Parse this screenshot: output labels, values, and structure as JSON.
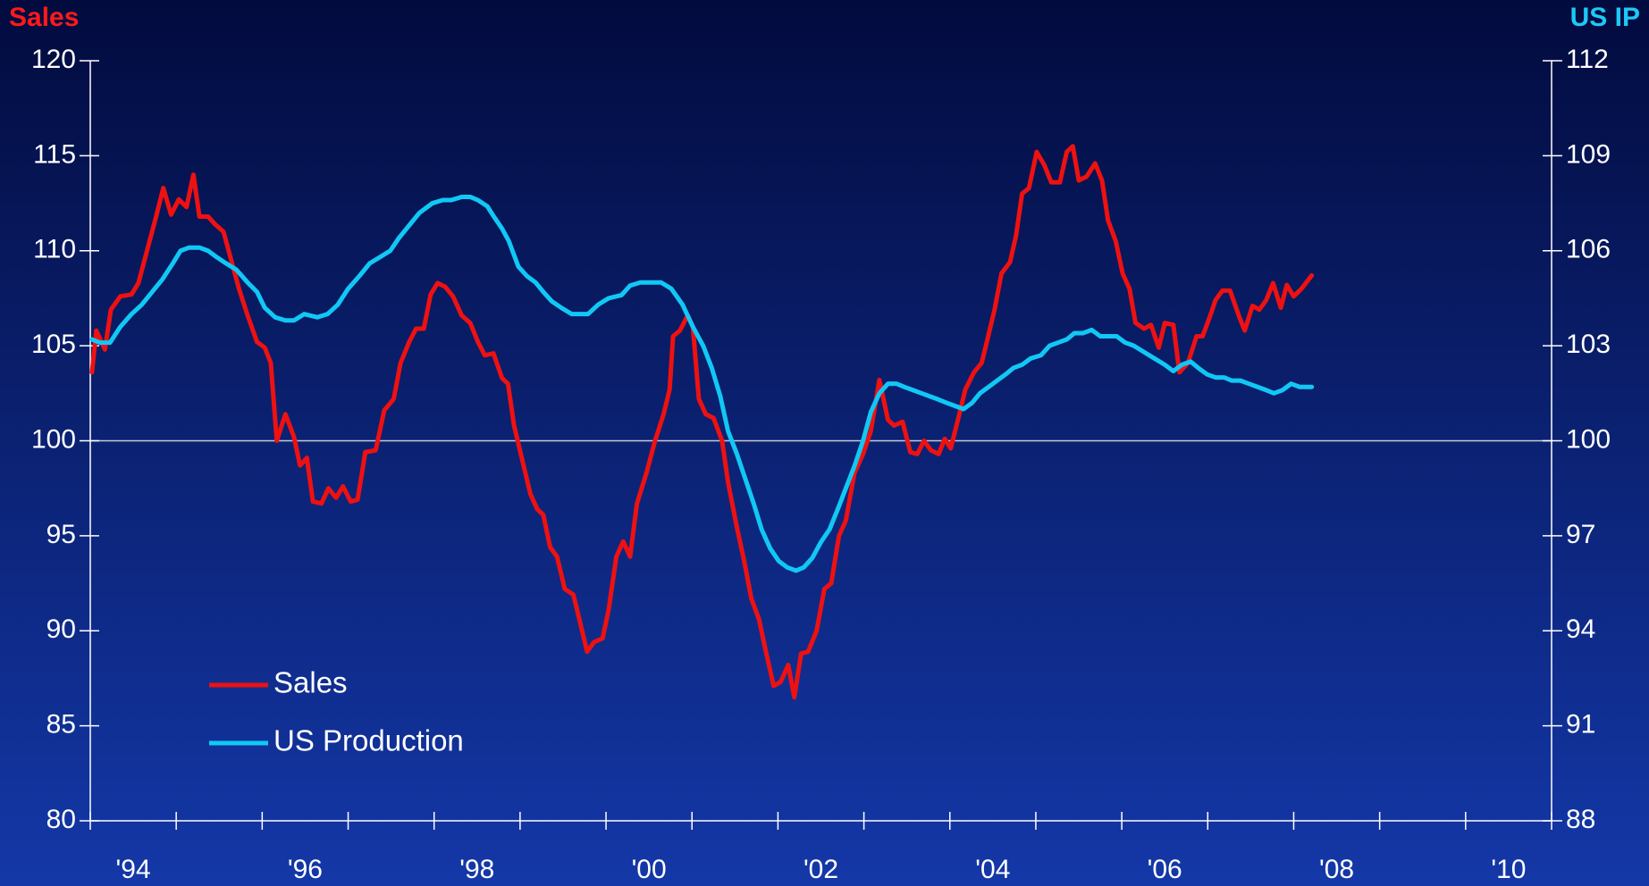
{
  "chart_data": {
    "type": "line",
    "ylabel": "Sales",
    "y2label": "US IP",
    "xlim": [
      1994,
      2011
    ],
    "xticks": [
      {
        "value": 1994.5,
        "label": "'94"
      },
      {
        "value": 1996.5,
        "label": "'96"
      },
      {
        "value": 1998.5,
        "label": "'98"
      },
      {
        "value": 2000.5,
        "label": "'00"
      },
      {
        "value": 2002.5,
        "label": "'02"
      },
      {
        "value": 2004.5,
        "label": "'04"
      },
      {
        "value": 2006.5,
        "label": "'06"
      },
      {
        "value": 2008.5,
        "label": "'08"
      },
      {
        "value": 2010.5,
        "label": "'10"
      }
    ],
    "xtick_marks": [
      1994,
      1995,
      1996,
      1997,
      1998,
      1999,
      2000,
      2001,
      2002,
      2003,
      2004,
      2005,
      2006,
      2007,
      2008,
      2009,
      2010,
      2011
    ],
    "ylim": [
      80,
      120
    ],
    "yticks": [
      80,
      85,
      90,
      95,
      100,
      105,
      110,
      115,
      120
    ],
    "y2lim": [
      88,
      112
    ],
    "y2ticks": [
      88,
      91,
      94,
      97,
      100,
      103,
      106,
      109,
      112
    ],
    "hline": 100,
    "series": [
      {
        "name": "Sales",
        "color": "#ee1111",
        "axis": "y",
        "x": [
          1994.02,
          1994.07,
          1994.17,
          1994.24,
          1994.35,
          1994.48,
          1994.56,
          1994.66,
          1994.76,
          1994.85,
          1994.94,
          1995.03,
          1995.12,
          1995.2,
          1995.27,
          1995.37,
          1995.45,
          1995.55,
          1995.64,
          1995.73,
          1995.83,
          1995.94,
          1996.03,
          1996.1,
          1996.17,
          1996.27,
          1996.37,
          1996.44,
          1996.52,
          1996.59,
          1996.69,
          1996.77,
          1996.86,
          1996.94,
          1997.03,
          1997.11,
          1997.2,
          1997.32,
          1997.42,
          1997.53,
          1997.61,
          1997.71,
          1997.79,
          1997.88,
          1997.96,
          1998.04,
          1998.13,
          1998.22,
          1998.32,
          1998.42,
          1998.51,
          1998.59,
          1998.69,
          1998.79,
          1998.86,
          1998.93,
          1999.03,
          1999.12,
          1999.2,
          1999.27,
          1999.35,
          1999.43,
          1999.52,
          1999.62,
          1999.69,
          1999.78,
          1999.86,
          1999.96,
          2000.03,
          2000.12,
          2000.2,
          2000.28,
          2000.36,
          2000.47,
          2000.57,
          2000.67,
          2000.74,
          2000.78,
          2000.86,
          2000.95,
          2001.01,
          2001.08,
          2001.16,
          2001.25,
          2001.35,
          2001.42,
          2001.52,
          2001.61,
          2001.69,
          2001.78,
          2001.86,
          2001.95,
          2002.03,
          2002.12,
          2002.19,
          2002.27,
          2002.35,
          2002.45,
          2002.54,
          2002.62,
          2002.71,
          2002.79,
          2002.89,
          2002.99,
          2003.08,
          2003.18,
          2003.28,
          2003.35,
          2003.45,
          2003.54,
          2003.62,
          2003.7,
          2003.78,
          2003.87,
          2003.94,
          2004.01,
          2004.11,
          2004.18,
          2004.28,
          2004.37,
          2004.43,
          2004.52,
          2004.6,
          2004.7,
          2004.77,
          2004.84,
          2004.92,
          2005.01,
          2005.1,
          2005.18,
          2005.28,
          2005.36,
          2005.43,
          2005.5,
          2005.59,
          2005.69,
          2005.77,
          2005.84,
          2005.93,
          2006.01,
          2006.09,
          2006.16,
          2006.26,
          2006.34,
          2006.43,
          2006.5,
          2006.6,
          2006.67,
          2006.77,
          2006.87,
          2006.94,
          2007.03,
          2007.09,
          2007.17,
          2007.26,
          2007.36,
          2007.43,
          2007.52,
          2007.6,
          2007.68,
          2007.76,
          2007.85,
          2007.92,
          2008.0,
          2008.09,
          2008.21
        ],
        "values": [
          103.6,
          105.8,
          104.8,
          106.9,
          107.6,
          107.7,
          108.3,
          110,
          111.7,
          113.3,
          111.9,
          112.7,
          112.3,
          114,
          111.8,
          111.8,
          111.4,
          111,
          109.5,
          108,
          106.6,
          105.2,
          104.9,
          104.1,
          100,
          101.4,
          100.2,
          98.7,
          99.1,
          96.8,
          96.7,
          97.5,
          97,
          97.6,
          96.8,
          96.9,
          99.4,
          99.5,
          101.6,
          102.2,
          104.1,
          105.2,
          105.9,
          105.9,
          107.7,
          108.3,
          108.1,
          107.6,
          106.6,
          106.2,
          105.2,
          104.5,
          104.6,
          103.3,
          103,
          100.8,
          98.9,
          97.2,
          96.4,
          96.1,
          94.4,
          93.9,
          92.2,
          91.9,
          90.6,
          88.9,
          89.4,
          89.6,
          91.1,
          93.9,
          94.7,
          93.9,
          96.7,
          98.3,
          100,
          101.4,
          102.7,
          105.5,
          105.8,
          106.6,
          106,
          102.2,
          101.4,
          101.2,
          100,
          97.8,
          95.5,
          93.6,
          91.7,
          90.6,
          88.9,
          87.1,
          87.3,
          88.2,
          86.5,
          88.8,
          88.9,
          90,
          92.2,
          92.5,
          95,
          95.8,
          98.3,
          99.3,
          100.5,
          103.2,
          101.1,
          100.8,
          101,
          99.4,
          99.3,
          100,
          99.5,
          99.3,
          100.1,
          99.6,
          101.4,
          102.7,
          103.6,
          104.1,
          105.2,
          106.9,
          108.8,
          109.4,
          110.8,
          113,
          113.3,
          115.2,
          114.5,
          113.6,
          113.6,
          115.2,
          115.5,
          113.7,
          113.9,
          114.6,
          113.7,
          111.6,
          110.5,
          108.8,
          108,
          106.2,
          105.9,
          106.1,
          104.9,
          106.2,
          106.1,
          103.6,
          104.1,
          105.5,
          105.5,
          106.6,
          107.4,
          107.9,
          107.9,
          106.6,
          105.8,
          107.1,
          106.9,
          107.4,
          108.3,
          107,
          108.2,
          107.6,
          108,
          108.7
        ]
      },
      {
        "name": "US Production",
        "color": "#11c8f5",
        "axis": "y2",
        "x": [
          1994.02,
          1994.11,
          1994.23,
          1994.35,
          1994.48,
          1994.6,
          1994.72,
          1994.84,
          1994.96,
          1995.05,
          1995.15,
          1995.27,
          1995.37,
          1995.47,
          1995.58,
          1995.7,
          1995.83,
          1995.94,
          1996.03,
          1996.15,
          1996.27,
          1996.37,
          1996.49,
          1996.64,
          1996.76,
          1996.88,
          1997.0,
          1997.13,
          1997.25,
          1997.37,
          1997.49,
          1997.59,
          1997.71,
          1997.83,
          1997.98,
          1998.1,
          1998.2,
          1998.32,
          1998.42,
          1998.51,
          1998.62,
          1998.69,
          1998.79,
          1998.87,
          1998.98,
          1999.08,
          1999.18,
          1999.27,
          1999.37,
          1999.48,
          1999.6,
          1999.69,
          1999.79,
          1999.91,
          2000.03,
          2000.18,
          2000.28,
          2000.4,
          2000.52,
          2000.64,
          2000.76,
          2000.89,
          2001.01,
          2001.13,
          2001.23,
          2001.33,
          2001.42,
          2001.52,
          2001.62,
          2001.72,
          2001.81,
          2001.91,
          2002.01,
          2002.11,
          2002.21,
          2002.3,
          2002.4,
          2002.5,
          2002.6,
          2002.69,
          2002.79,
          2002.89,
          2002.99,
          2003.08,
          2003.18,
          2003.28,
          2003.38,
          2003.47,
          2003.57,
          2003.67,
          2003.77,
          2003.87,
          2003.96,
          2004.06,
          2004.16,
          2004.26,
          2004.35,
          2004.45,
          2004.55,
          2004.65,
          2004.74,
          2004.84,
          2004.94,
          2005.06,
          2005.16,
          2005.26,
          2005.36,
          2005.45,
          2005.55,
          2005.65,
          2005.75,
          2005.84,
          2005.94,
          2006.04,
          2006.14,
          2006.26,
          2006.38,
          2006.5,
          2006.6,
          2006.7,
          2006.8,
          2006.89,
          2006.99,
          2007.09,
          2007.19,
          2007.28,
          2007.38,
          2007.48,
          2007.58,
          2007.68,
          2007.77,
          2007.87,
          2007.97,
          2008.07,
          2008.21
        ],
        "values": [
          103.2,
          103.1,
          103.1,
          103.6,
          104,
          104.3,
          104.7,
          105.1,
          105.6,
          106,
          106.1,
          106.1,
          106,
          105.8,
          105.6,
          105.4,
          105,
          104.7,
          104.2,
          103.9,
          103.8,
          103.8,
          104,
          103.9,
          104,
          104.3,
          104.8,
          105.2,
          105.6,
          105.8,
          106,
          106.4,
          106.8,
          107.2,
          107.5,
          107.6,
          107.6,
          107.7,
          107.7,
          107.6,
          107.4,
          107.1,
          106.7,
          106.3,
          105.5,
          105.2,
          105,
          104.7,
          104.4,
          104.2,
          104,
          104,
          104,
          104.3,
          104.5,
          104.6,
          104.9,
          105,
          105,
          105,
          104.8,
          104.3,
          103.6,
          103,
          102.3,
          101.4,
          100.3,
          99.6,
          98.8,
          98,
          97.2,
          96.6,
          96.2,
          96,
          95.9,
          96,
          96.3,
          96.8,
          97.2,
          97.8,
          98.5,
          99.2,
          100,
          100.9,
          101.5,
          101.8,
          101.8,
          101.7,
          101.6,
          101.5,
          101.4,
          101.3,
          101.2,
          101.1,
          101,
          101.2,
          101.5,
          101.7,
          101.9,
          102.1,
          102.3,
          102.4,
          102.6,
          102.7,
          103,
          103.1,
          103.2,
          103.4,
          103.4,
          103.5,
          103.3,
          103.3,
          103.3,
          103.1,
          103,
          102.8,
          102.6,
          102.4,
          102.2,
          102.4,
          102.5,
          102.3,
          102.1,
          102,
          102,
          101.9,
          101.9,
          101.8,
          101.7,
          101.6,
          101.5,
          101.6,
          101.8,
          101.7,
          101.7
        ]
      }
    ]
  }
}
